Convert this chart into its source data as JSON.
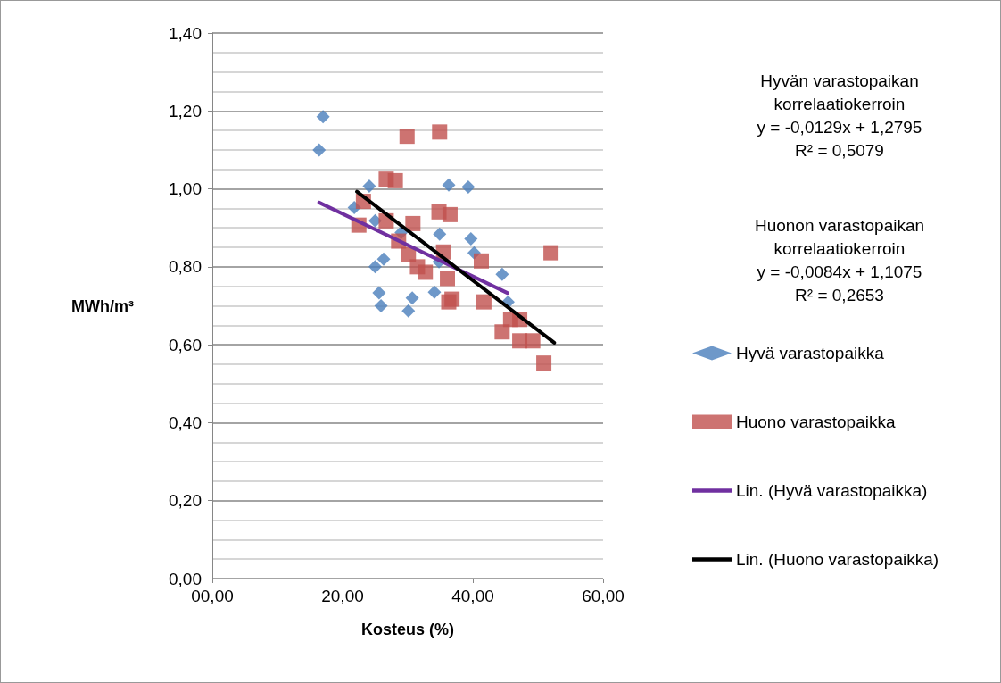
{
  "chart_data": {
    "type": "scatter",
    "xlabel": "Kosteus (%)",
    "ylabel": "MWh/m³",
    "xlim": [
      0,
      60
    ],
    "xticks": [
      {
        "value": 0,
        "label": "00,00"
      },
      {
        "value": 20,
        "label": "20,00"
      },
      {
        "value": 40,
        "label": "40,00"
      },
      {
        "value": 60,
        "label": "60,00"
      }
    ],
    "ylim": [
      0,
      1.4
    ],
    "yticks": [
      {
        "value": 0,
        "label": "0,00"
      },
      {
        "value": 0.2,
        "label": "0,20"
      },
      {
        "value": 0.4,
        "label": "0,40"
      },
      {
        "value": 0.6,
        "label": "0,60"
      },
      {
        "value": 0.8,
        "label": "0,80"
      },
      {
        "value": 1.0,
        "label": "1,00"
      },
      {
        "value": 1.2,
        "label": "1,20"
      },
      {
        "value": 1.4,
        "label": "1,40"
      }
    ],
    "grid": "y",
    "legend": "right",
    "annotations": [
      "Hyvän varastopaikan\nkorrelaatiokerroin\ny = -0,0129x + 1,2795\nR² = 0,5079",
      "Huonon varastopaikan\nkorrelaatiokerroin\ny = -0,0084x + 1,1075\nR² = 0,2653"
    ],
    "series": [
      {
        "name": "Hyvä varastopaikka",
        "marker": "diamond",
        "color": "#4a7ebb",
        "x": [
          16.4,
          17.0,
          24.1,
          21.8,
          25.0,
          25.0,
          26.3,
          25.6,
          25.9,
          30.7,
          30.1,
          34.1,
          34.9,
          36.3,
          39.3,
          39.7,
          40.2,
          44.5,
          45.4,
          29.0,
          34.8
        ],
        "values": [
          1.1,
          1.185,
          1.007,
          0.952,
          0.918,
          0.8,
          0.82,
          0.733,
          0.7,
          0.72,
          0.687,
          0.735,
          0.884,
          1.01,
          1.005,
          0.872,
          0.836,
          0.781,
          0.71,
          0.888,
          0.813
        ]
      },
      {
        "name": "Huono varastopaikka",
        "marker": "square",
        "color": "#c0504d",
        "x": [
          23.2,
          22.5,
          26.7,
          28.1,
          29.9,
          34.9,
          26.7,
          30.8,
          34.8,
          36.5,
          28.6,
          30.1,
          31.5,
          32.7,
          35.5,
          36.1,
          36.8,
          36.3,
          41.3,
          41.7,
          45.8,
          47.2,
          44.5,
          47.2,
          49.2,
          50.9,
          52.0
        ],
        "values": [
          0.968,
          0.907,
          1.025,
          1.021,
          1.135,
          1.146,
          0.918,
          0.911,
          0.941,
          0.934,
          0.866,
          0.831,
          0.8,
          0.786,
          0.838,
          0.77,
          0.717,
          0.71,
          0.815,
          0.71,
          0.665,
          0.665,
          0.633,
          0.61,
          0.61,
          0.553,
          0.836
        ]
      },
      {
        "name": "Lin. (Hyvä varastopaikka)",
        "type": "line",
        "marker": "none",
        "color": "#7030a0",
        "x": [
          16.4,
          45.3
        ],
        "values": [
          0.965,
          0.733
        ]
      },
      {
        "name": "Lin. (Huono varastopaikka)",
        "type": "line",
        "marker": "none",
        "color": "#000000",
        "x": [
          22.2,
          52.5
        ],
        "values": [
          0.993,
          0.605
        ]
      }
    ]
  }
}
